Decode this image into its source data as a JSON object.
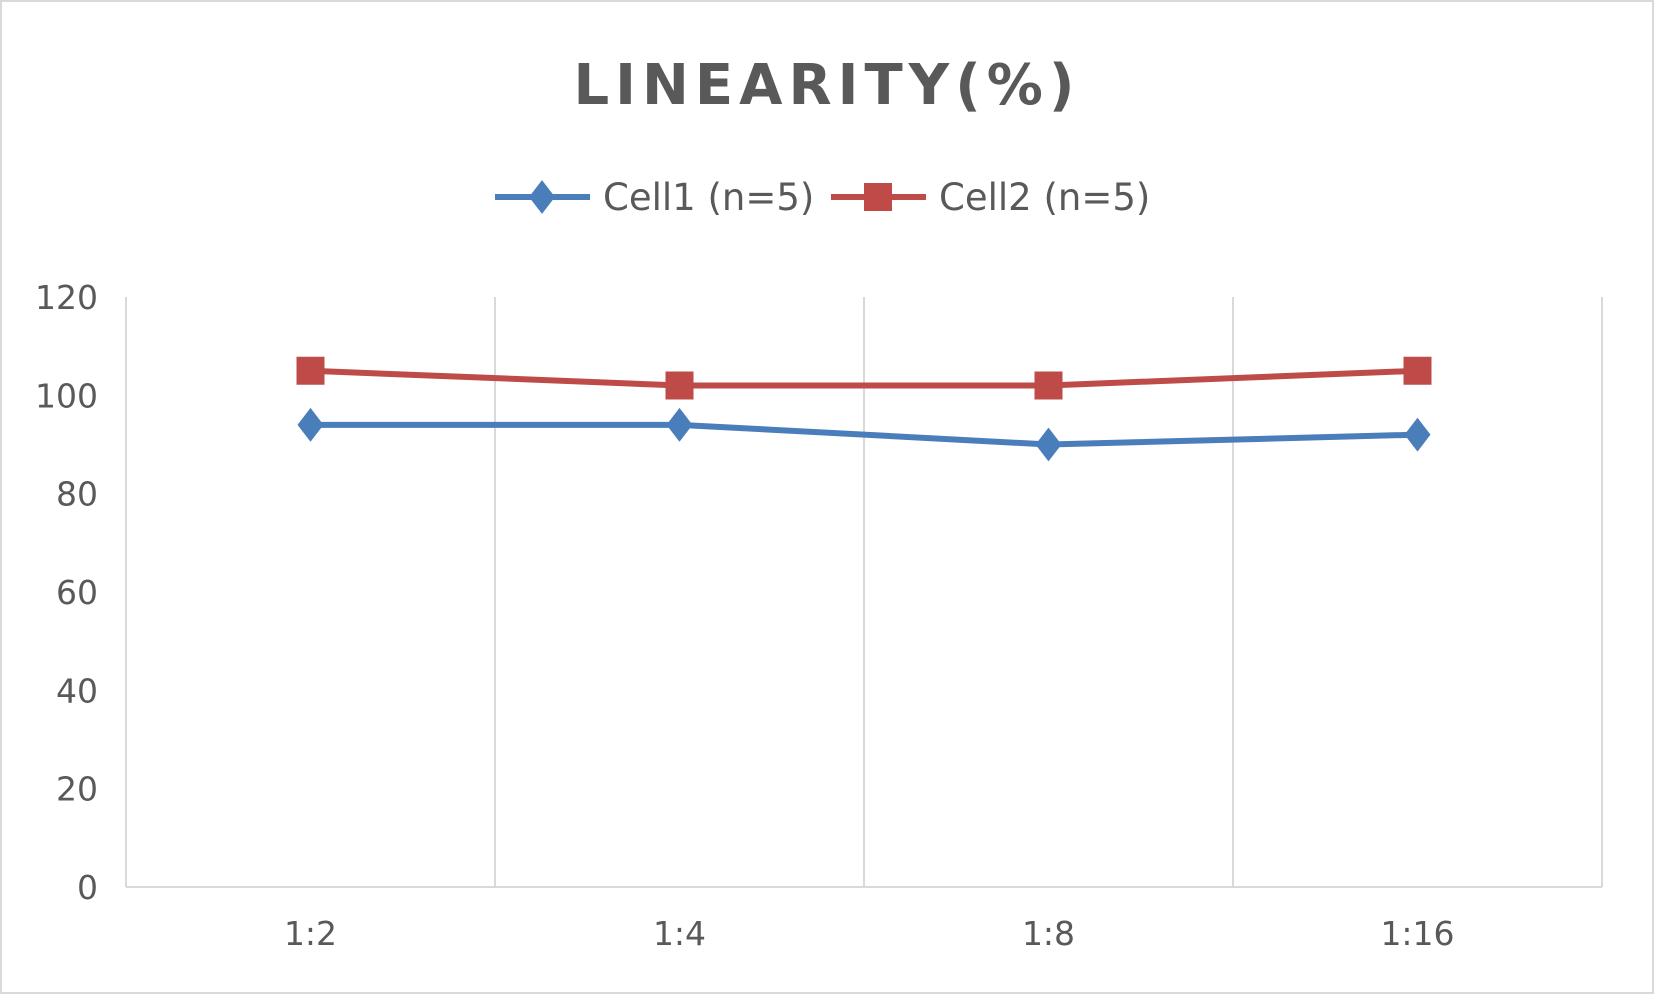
{
  "chart_data": {
    "type": "line",
    "title": "LINEARITY(%)",
    "xlabel": "",
    "ylabel": "",
    "categories": [
      "1:2",
      "1:4",
      "1:8",
      "1:16"
    ],
    "series": [
      {
        "name": "Cell1 (n=5)",
        "values": [
          94,
          94,
          90,
          92
        ],
        "color": "#4A7EBB",
        "marker": "diamond"
      },
      {
        "name": "Cell2 (n=5)",
        "values": [
          105,
          102,
          102,
          105
        ],
        "color": "#BE4B48",
        "marker": "square"
      }
    ],
    "ylim": [
      0,
      120
    ],
    "yticks": [
      "0",
      "20",
      "40",
      "60",
      "80",
      "100",
      "120"
    ],
    "grid": "vertical",
    "legend": "top"
  }
}
